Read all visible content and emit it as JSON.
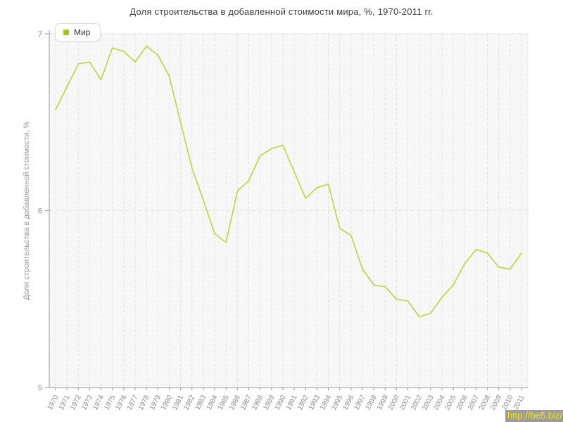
{
  "title": "Доля строительства в добавленной стоимости мира, %, 1970-2011 гг.",
  "legend": {
    "items": [
      {
        "label": "Мир",
        "color": "#a9c422"
      }
    ]
  },
  "watermark": {
    "url_text": "http://be5.biz/",
    "text_color": "#ffe60a",
    "bg_color": "#9c9c9c"
  },
  "colors": {
    "series_line": "#bcd53b",
    "plot_bg": "#f7f7f7",
    "plot_border": "#e8e8e8",
    "gridline": "#e1e1e1",
    "axis": "#999999",
    "tick_label": "#8a8a8a",
    "axis_title": "#9a9a9a",
    "title_text": "#3d3d3d"
  },
  "chart_data": {
    "type": "line",
    "title": "Доля строительства в добавленной стоимости мира, %, 1970-2011 гг.",
    "xlabel": "",
    "ylabel": "Доля строительства в добавленной стоимости, %",
    "ylim": [
      5,
      7
    ],
    "yticks": [
      5,
      6,
      7
    ],
    "grid": "vertical dashed per year, horizontal dashed at integer ticks",
    "legend_position": "top-left",
    "x": [
      1970,
      1971,
      1972,
      1973,
      1974,
      1975,
      1976,
      1977,
      1978,
      1979,
      1980,
      1981,
      1982,
      1983,
      1984,
      1985,
      1986,
      1987,
      1988,
      1989,
      1990,
      1991,
      1992,
      1993,
      1994,
      1995,
      1996,
      1997,
      1998,
      1999,
      2000,
      2001,
      2002,
      2003,
      2004,
      2005,
      2006,
      2007,
      2008,
      2009,
      2010,
      2011
    ],
    "series": [
      {
        "name": "Мир",
        "color": "#bcd53b",
        "values": [
          6.57,
          6.7,
          6.83,
          6.84,
          6.74,
          6.92,
          6.9,
          6.84,
          6.93,
          6.88,
          6.76,
          6.5,
          6.24,
          6.06,
          5.87,
          5.82,
          6.11,
          6.17,
          6.31,
          6.35,
          6.37,
          6.22,
          6.07,
          6.13,
          6.15,
          5.9,
          5.86,
          5.67,
          5.58,
          5.57,
          5.5,
          5.49,
          5.4,
          5.42,
          5.51,
          5.58,
          5.7,
          5.78,
          5.76,
          5.68,
          5.67,
          5.76
        ]
      }
    ]
  }
}
